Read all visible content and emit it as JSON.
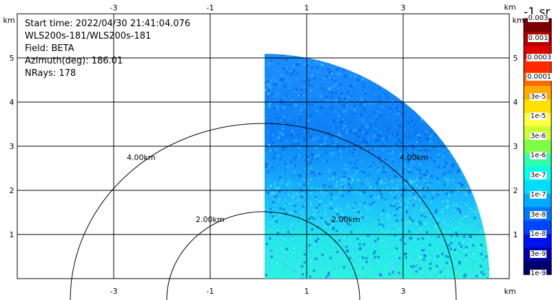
{
  "info": {
    "start_time": "Start time: 2022/04/30 21:41:04.076",
    "instrument": "WLS200s-181/WLS200s-181",
    "field": "Field: BETA",
    "azimuth": "Azimuth(deg): 186.01",
    "nrays": "NRays: 178"
  },
  "axes": {
    "x_ticks": [
      "-3",
      "-1",
      "1",
      "3"
    ],
    "y_ticks": [
      "1",
      "2",
      "3",
      "4",
      "5"
    ],
    "x_unit": "km",
    "y_unit": "km"
  },
  "range_rings": [
    "2.00km",
    "4.00km"
  ],
  "colorbar": {
    "title": "-1 sr",
    "labels": [
      "0.003",
      "0.001",
      "0.0003",
      "0.0001",
      "3e-5",
      "1e-5",
      "3e-6",
      "1e-6",
      "3e-7",
      "1e-7",
      "3e-8",
      "1e-8",
      "3e-9",
      "1e-9"
    ],
    "colors": [
      "#7a0000",
      "#b00000",
      "#dd0000",
      "#ff2a00",
      "#ff6a00",
      "#ffaa00",
      "#ffe000",
      "#ffff40",
      "#ccff33",
      "#7fff44",
      "#33ffaa",
      "#00ffee",
      "#00ddff",
      "#00aaff",
      "#0077ff",
      "#0044ff",
      "#0010ee",
      "#0000aa",
      "#00006a"
    ]
  }
}
